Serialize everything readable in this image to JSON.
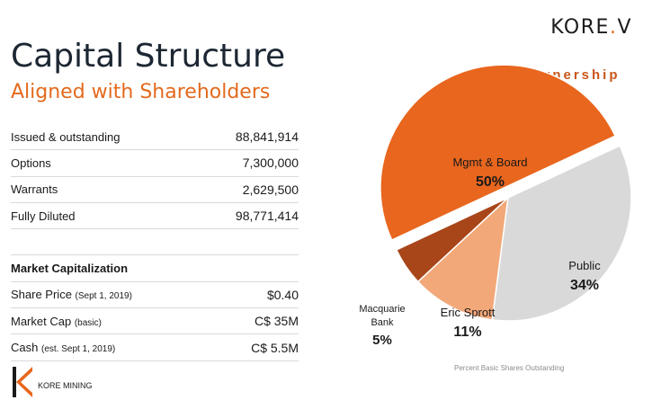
{
  "brand": {
    "name_prefix": "KORE",
    "name_dot": ".",
    "name_suffix": "V"
  },
  "header": {
    "title": "Capital Structure",
    "subtitle": "Aligned with Shareholders"
  },
  "capital_table": {
    "rows": [
      {
        "label": "Issued & outstanding",
        "value": "88,841,914"
      },
      {
        "label": "Options",
        "value": "7,300,000"
      },
      {
        "label": "Warrants",
        "value": "2,629,500"
      },
      {
        "label": "Fully Diluted",
        "value": "98,771,414"
      }
    ],
    "market_header": "Market Capitalization",
    "market_rows": [
      {
        "label": "Share Price",
        "note": "(Sept 1, 2019)",
        "value": "$0.40"
      },
      {
        "label": "Market Cap",
        "note": "(basic)",
        "value": "C$ 35M"
      },
      {
        "label": "Cash",
        "note": "(est. Sept 1, 2019)",
        "value": "C$ 5.5M"
      }
    ]
  },
  "logo": {
    "letter": "K",
    "text": "KORE MINING"
  },
  "chart_data": {
    "type": "pie",
    "title": "Ownership",
    "caption": "Percent Basic Shares Outstanding",
    "slices": [
      {
        "label": "Mgmt & Board",
        "value": 50,
        "display": "50%",
        "color": "#e8661e",
        "exploded": true
      },
      {
        "label": "Public",
        "value": 34,
        "display": "34%",
        "color": "#d9d9d9",
        "exploded": false
      },
      {
        "label": "Eric Sprott",
        "value": 11,
        "display": "11%",
        "color": "#f2a878",
        "exploded": false
      },
      {
        "label": "Macquarie Bank",
        "value": 5,
        "display": "5%",
        "color": "#a8461a",
        "exploded": false
      }
    ]
  }
}
